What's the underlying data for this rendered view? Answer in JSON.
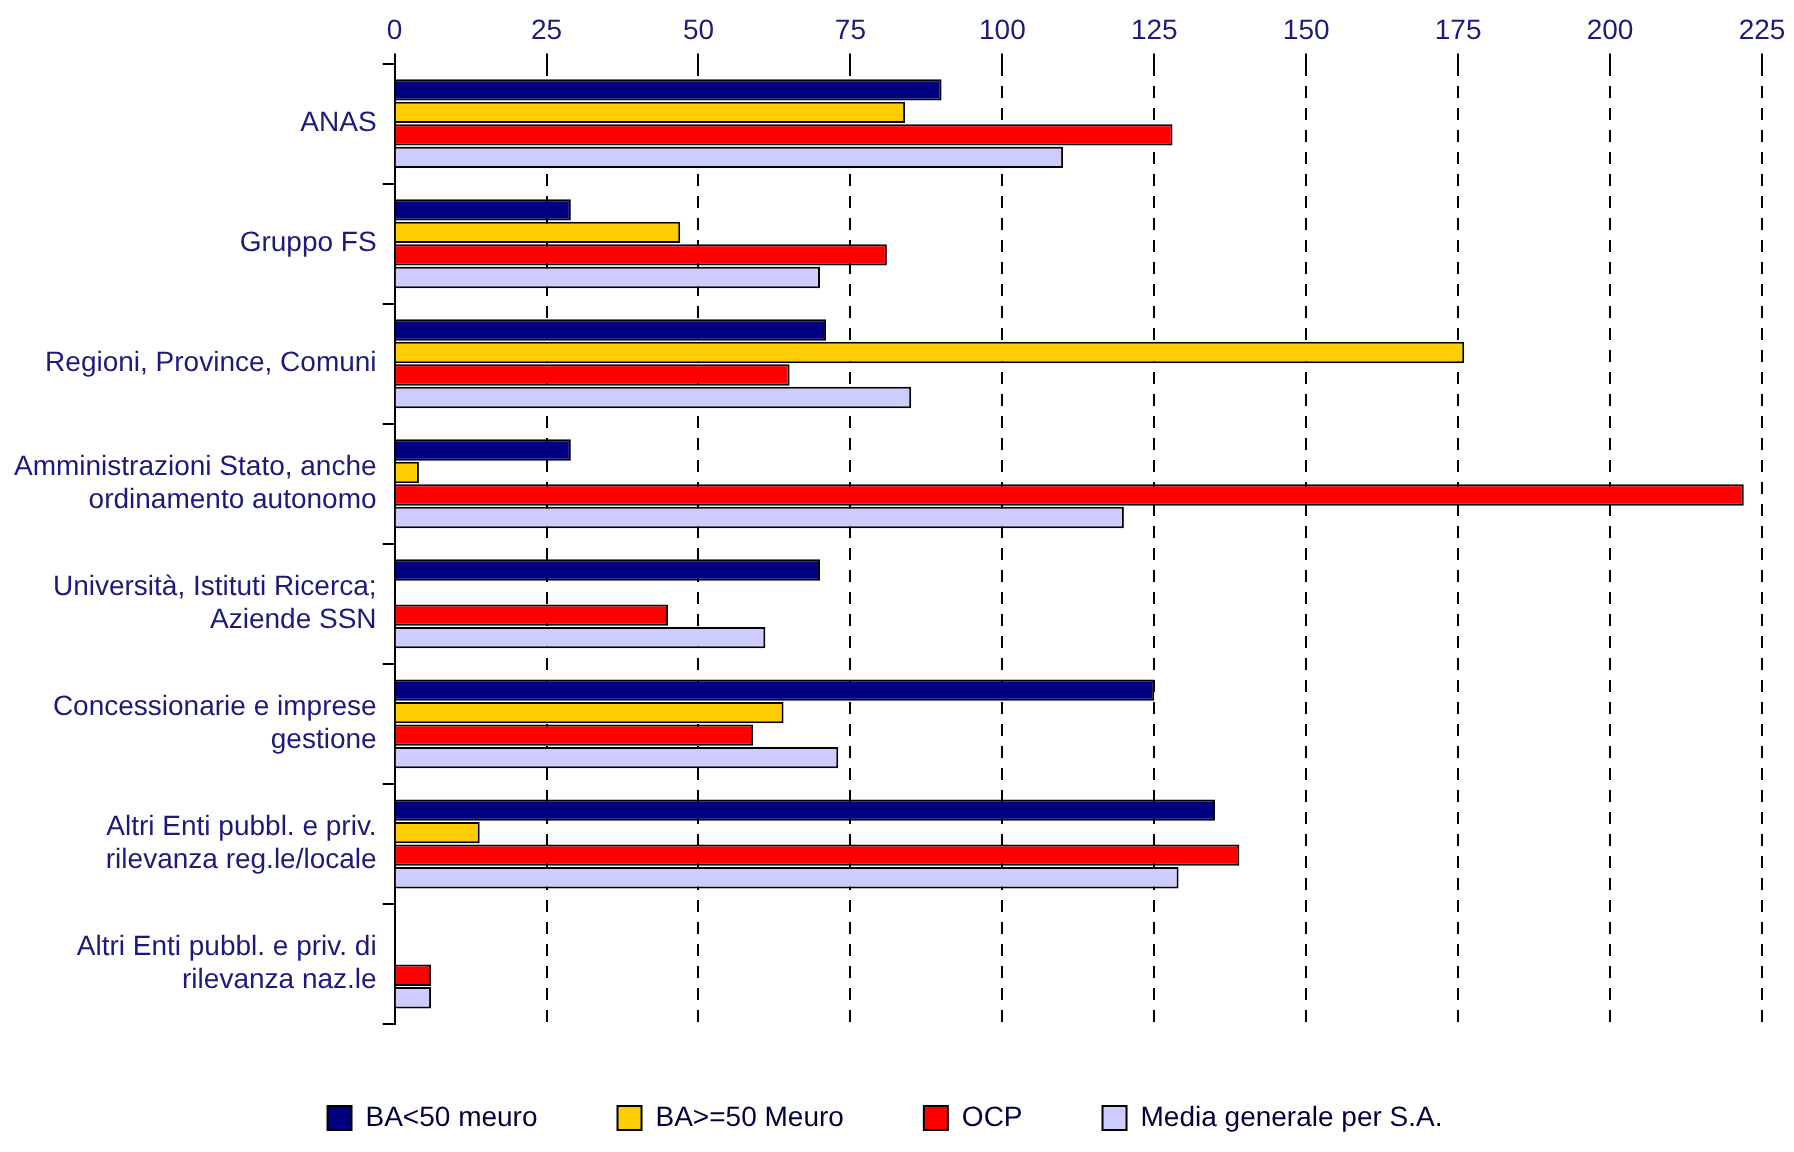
{
  "chart_data": {
    "type": "bar",
    "orientation": "horizontal",
    "categories": [
      "ANAS",
      "Gruppo FS",
      "Regioni, Province, Comuni",
      "Amministrazioni Stato, anche ordinamento autonomo",
      "Università, Istituti Ricerca; Aziende SSN",
      "Concessionarie e imprese gestione",
      "Altri Enti pubbl. e priv. rilevanza reg.le/locale",
      "Altri Enti pubbl. e priv. di rilevanza naz.le"
    ],
    "series": [
      {
        "name": "BA<50 meuro",
        "color": "#000080",
        "values": [
          90,
          29,
          71,
          29,
          70,
          125,
          135,
          null
        ]
      },
      {
        "name": "BA>=50 Meuro",
        "color": "#ffcc00",
        "values": [
          84,
          47,
          176,
          4,
          null,
          64,
          14,
          null
        ]
      },
      {
        "name": "OCP",
        "color": "#ff0000",
        "values": [
          128,
          81,
          65,
          222,
          45,
          59,
          139,
          6
        ]
      },
      {
        "name": "Media generale per S.A.",
        "color": "#ccccff",
        "values": [
          110,
          70,
          85,
          120,
          61,
          73,
          129,
          6
        ]
      }
    ],
    "xlim": [
      0,
      225
    ],
    "xticks": [
      0,
      25,
      50,
      75,
      100,
      125,
      150,
      175,
      200,
      225
    ],
    "grid": "x",
    "legend": "bottom"
  }
}
